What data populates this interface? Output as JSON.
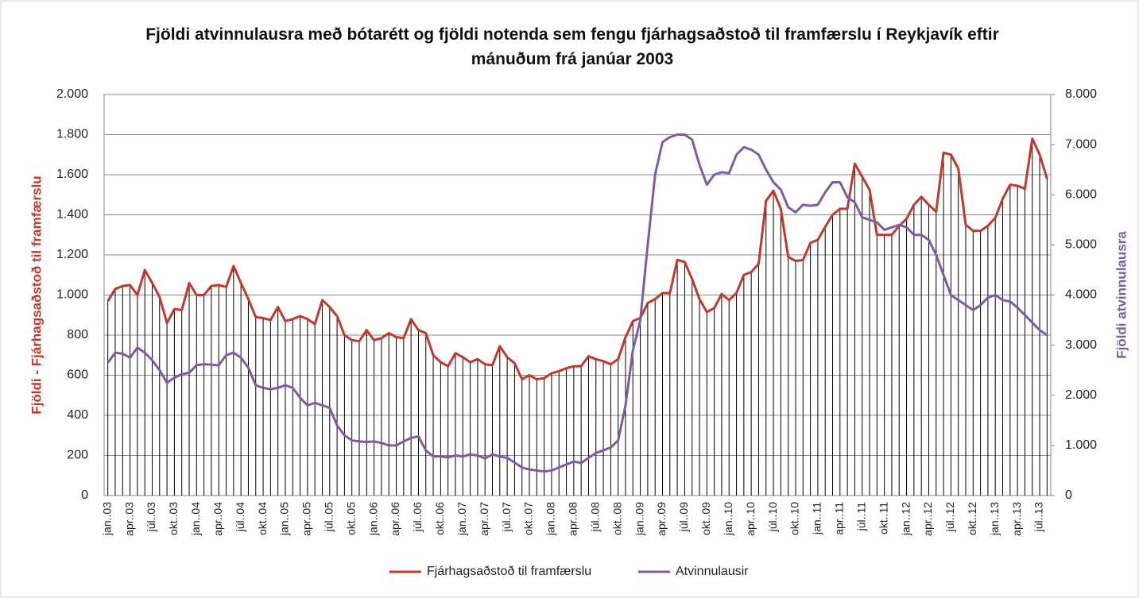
{
  "chart_data": {
    "type": "line",
    "title": "Fjöldi atvinnulausra með bótarétt og fjöldi notenda sem fengu fjárhagsaðstoð til framfærslu í Reykjavík eftir mánuðum frá janúar 2003",
    "ylabel": "Fjöldi - Fjárhagsaðstoð til framfærslu",
    "y2label": "Fjöldi atvinnulausra",
    "categories": [
      "jan..03",
      null,
      null,
      "apr..03",
      null,
      null,
      "júl..03",
      null,
      null,
      "okt..03",
      null,
      null,
      "jan..04",
      null,
      null,
      "apr..04",
      null,
      null,
      "júl..04",
      null,
      null,
      "okt..04",
      null,
      null,
      "jan..05",
      null,
      null,
      "apr..05",
      null,
      null,
      "júl..05",
      null,
      null,
      "okt..05",
      null,
      null,
      "jan..06",
      null,
      null,
      "apr..06",
      null,
      null,
      "júl..06",
      null,
      null,
      "okt..06",
      null,
      null,
      "jan..07",
      null,
      null,
      "apr..07",
      null,
      null,
      "júl..07",
      null,
      null,
      "okt..07",
      null,
      null,
      "jan..08",
      null,
      null,
      "apr..08",
      null,
      null,
      "júl..08",
      null,
      null,
      "okt..08",
      null,
      null,
      "jan..09",
      null,
      null,
      "apr..09",
      null,
      null,
      "júl..09",
      null,
      null,
      "okt..09",
      null,
      null,
      "jan..10",
      null,
      null,
      "apr..10",
      null,
      null,
      "júl..10",
      null,
      null,
      "okt..10",
      null,
      null,
      "jan..11",
      null,
      null,
      "apr..11",
      null,
      null,
      "júl..11",
      null,
      null,
      "okt..11",
      null,
      null,
      "jan..12",
      null,
      null,
      "apr..12",
      null,
      null,
      "júl..12",
      null,
      null,
      "okt..12",
      null,
      null,
      "jan..13",
      null,
      null,
      "apr..13",
      null,
      null,
      "júl..13",
      null
    ],
    "series": [
      {
        "name": "Fjárhagsaðstoð til framfærslu",
        "color": "#c0392b",
        "axis": "y",
        "droplines": true,
        "values": [
          970,
          1030,
          1045,
          1050,
          1000,
          1125,
          1060,
          990,
          860,
          930,
          925,
          1060,
          1000,
          1000,
          1045,
          1050,
          1040,
          1145,
          1060,
          980,
          890,
          885,
          875,
          940,
          870,
          880,
          895,
          880,
          855,
          975,
          940,
          895,
          800,
          775,
          770,
          825,
          775,
          785,
          810,
          790,
          785,
          880,
          825,
          810,
          700,
          665,
          645,
          710,
          690,
          665,
          680,
          655,
          650,
          745,
          690,
          660,
          580,
          600,
          580,
          585,
          610,
          620,
          635,
          645,
          645,
          695,
          680,
          670,
          655,
          680,
          790,
          870,
          885,
          960,
          980,
          1010,
          1010,
          1175,
          1165,
          1080,
          980,
          915,
          935,
          1005,
          975,
          1010,
          1100,
          1115,
          1155,
          1470,
          1520,
          1430,
          1190,
          1170,
          1175,
          1260,
          1275,
          1340,
          1400,
          1430,
          1430,
          1655,
          1590,
          1525,
          1300,
          1300,
          1300,
          1345,
          1380,
          1450,
          1490,
          1450,
          1415,
          1710,
          1700,
          1630,
          1350,
          1320,
          1320,
          1345,
          1385,
          1480,
          1550,
          1545,
          1530,
          1780,
          1700,
          1580
        ]
      },
      {
        "name": "Atvinnulausir",
        "color": "#7d5ba6",
        "axis": "y2",
        "values": [
          2650,
          2850,
          2830,
          2750,
          2950,
          2850,
          2700,
          2500,
          2250,
          2350,
          2420,
          2450,
          2600,
          2620,
          2610,
          2600,
          2800,
          2850,
          2750,
          2550,
          2200,
          2150,
          2120,
          2150,
          2200,
          2150,
          1950,
          1800,
          1850,
          1800,
          1750,
          1400,
          1200,
          1100,
          1080,
          1070,
          1080,
          1050,
          1000,
          1000,
          1080,
          1150,
          1180,
          900,
          780,
          780,
          760,
          800,
          780,
          820,
          800,
          740,
          820,
          780,
          750,
          660,
          560,
          520,
          500,
          480,
          500,
          560,
          620,
          680,
          650,
          750,
          850,
          900,
          960,
          1100,
          1800,
          2900,
          3500,
          5000,
          6400,
          7050,
          7150,
          7200,
          7200,
          7100,
          6600,
          6200,
          6400,
          6450,
          6430,
          6800,
          6950,
          6900,
          6800,
          6500,
          6250,
          6100,
          5750,
          5650,
          5800,
          5780,
          5800,
          6050,
          6250,
          6250,
          5950,
          5850,
          5550,
          5500,
          5450,
          5300,
          5350,
          5400,
          5350,
          5200,
          5200,
          5100,
          4800,
          4400,
          4000,
          3900,
          3800,
          3700,
          3800,
          3950,
          4000,
          3900,
          3870,
          3750,
          3600,
          3450,
          3300,
          3200
        ]
      }
    ],
    "ylim": [
      0,
      2000
    ],
    "yticks": [
      0,
      200,
      400,
      600,
      800,
      {
        "value": 1000,
        "label": "1.000"
      },
      {
        "value": 1200,
        "label": "1.200"
      },
      {
        "value": 1400,
        "label": "1.400"
      },
      {
        "value": 1600,
        "label": "1.600"
      },
      {
        "value": 1800,
        "label": "1.800"
      },
      {
        "value": 2000,
        "label": "2.000"
      }
    ],
    "y2lim": [
      0,
      8000
    ],
    "y2ticks": [
      0,
      {
        "value": 1000,
        "label": "1.000"
      },
      {
        "value": 2000,
        "label": "2.000"
      },
      {
        "value": 3000,
        "label": "3.000"
      },
      {
        "value": 4000,
        "label": "4.000"
      },
      {
        "value": 5000,
        "label": "5.000"
      },
      {
        "value": 6000,
        "label": "6.000"
      },
      {
        "value": 7000,
        "label": "7.000"
      },
      {
        "value": 8000,
        "label": "8.000"
      }
    ],
    "grid": true,
    "legend": "bottom"
  }
}
